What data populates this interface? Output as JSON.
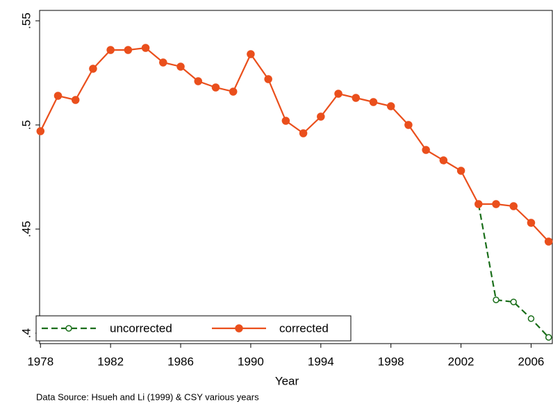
{
  "chart_data": {
    "type": "line",
    "x_label": "Year",
    "source": "Data Source: Hsueh and Li (1999) & CSY various years",
    "x": [
      1978,
      1979,
      1980,
      1981,
      1982,
      1983,
      1984,
      1985,
      1986,
      1987,
      1988,
      1989,
      1990,
      1991,
      1992,
      1993,
      1994,
      1995,
      1996,
      1997,
      1998,
      1999,
      2000,
      2001,
      2002,
      2003,
      2004,
      2005,
      2006,
      2007
    ],
    "series": [
      {
        "name": "uncorrected",
        "color": "#1a6e1a",
        "line_style": "dashed",
        "marker": "hollow",
        "values": [
          null,
          null,
          null,
          null,
          null,
          null,
          null,
          null,
          null,
          null,
          null,
          null,
          null,
          null,
          null,
          null,
          null,
          null,
          null,
          null,
          null,
          null,
          null,
          null,
          null,
          0.462,
          0.416,
          0.415,
          0.407,
          0.398
        ]
      },
      {
        "name": "corrected",
        "color": "#ea4f1c",
        "line_style": "solid",
        "marker": "filled",
        "values": [
          0.497,
          0.514,
          0.512,
          0.527,
          0.536,
          0.536,
          0.537,
          0.53,
          0.528,
          0.521,
          0.518,
          0.516,
          0.534,
          0.522,
          0.502,
          0.496,
          0.504,
          0.515,
          0.513,
          0.511,
          0.509,
          0.5,
          0.488,
          0.483,
          0.478,
          0.462,
          0.462,
          0.461,
          0.453,
          0.444
        ]
      }
    ],
    "xlim": [
      1977.95,
      2007.25
    ],
    "ylim": [
      0.395,
      0.555
    ],
    "xticks": [
      1978,
      1982,
      1986,
      1990,
      1994,
      1998,
      2002,
      2006
    ],
    "yticks": [
      {
        "value": 0.4,
        "label": ".4"
      },
      {
        "value": 0.45,
        "label": ".45"
      },
      {
        "value": 0.5,
        "label": ".5"
      },
      {
        "value": 0.55,
        "label": ".55"
      }
    ],
    "legend": "bottom-left"
  }
}
